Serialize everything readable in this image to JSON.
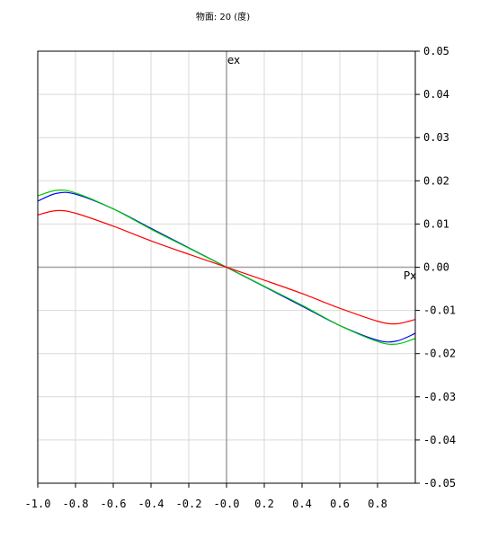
{
  "chart_data": {
    "type": "line",
    "title": "物面: 20 (度)",
    "xlabel": "Px",
    "ylabel": "ex",
    "xlim": [
      -1.0,
      1.0
    ],
    "ylim": [
      -0.05,
      0.05
    ],
    "x_ticks": [
      -1.0,
      -0.8,
      -0.6,
      -0.4,
      -0.2,
      0.0,
      0.2,
      0.4,
      0.6,
      0.8
    ],
    "x_tick_labels": [
      "-1.0",
      "-0.8",
      "-0.6",
      "-0.4",
      "-0.2",
      "-0.0",
      "0.2",
      "0.4",
      "0.6",
      "0.8"
    ],
    "y_ticks": [
      0.05,
      0.04,
      0.03,
      0.02,
      0.01,
      0.0,
      -0.01,
      -0.02,
      -0.03,
      -0.04,
      -0.05
    ],
    "y_tick_labels": [
      "0.05",
      "0.04",
      "0.03",
      "0.02",
      "0.01",
      "0.00",
      "-0.01",
      "-0.02",
      "-0.03",
      "-0.04",
      "-0.05"
    ],
    "grid": true,
    "x": [
      -1.0,
      -0.9,
      -0.8,
      -0.6,
      -0.4,
      -0.2,
      0.0,
      0.2,
      0.4,
      0.6,
      0.8,
      0.9,
      1.0
    ],
    "series": [
      {
        "color": "#0000ff",
        "values": [
          0.0153,
          0.0171,
          0.0169,
          0.0135,
          0.009,
          0.0045,
          0.0,
          -0.0045,
          -0.009,
          -0.0135,
          -0.0169,
          -0.0171,
          -0.0153
        ]
      },
      {
        "color": "#00cc00",
        "values": [
          0.0165,
          0.0178,
          0.0172,
          0.0135,
          0.0088,
          0.0044,
          0.0,
          -0.0044,
          -0.0088,
          -0.0135,
          -0.0172,
          -0.0178,
          -0.0165
        ]
      },
      {
        "color": "#ff0000",
        "values": [
          0.0121,
          0.0131,
          0.0125,
          0.0095,
          0.0061,
          0.003,
          0.0,
          -0.003,
          -0.0061,
          -0.0095,
          -0.0125,
          -0.0131,
          -0.0121
        ]
      }
    ]
  }
}
